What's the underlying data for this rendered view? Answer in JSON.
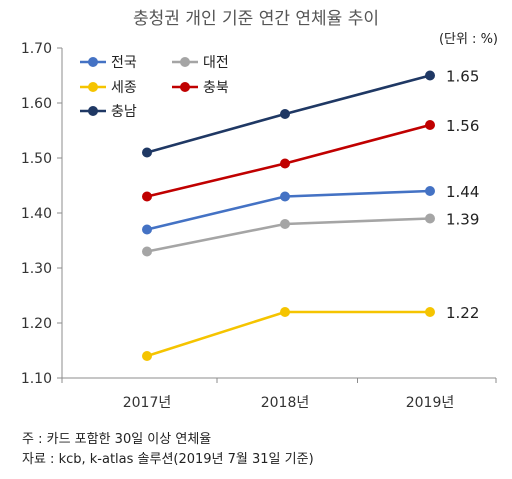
{
  "chart_data": {
    "type": "line",
    "title": "충청권 개인 기준 연간 연체율 추이",
    "unit_label": "(단위 : %)",
    "categories": [
      "2017년",
      "2018년",
      "2019년"
    ],
    "ylim": [
      1.1,
      1.7
    ],
    "yticks": [
      "1.10",
      "1.20",
      "1.30",
      "1.40",
      "1.50",
      "1.60",
      "1.70"
    ],
    "grid": false,
    "legend_position": "top-left",
    "series": [
      {
        "name": "전국",
        "color": "#4472C4",
        "values": [
          1.37,
          1.43,
          1.44
        ],
        "end_label": "1.44"
      },
      {
        "name": "대전",
        "color": "#A5A5A5",
        "values": [
          1.33,
          1.38,
          1.39
        ],
        "end_label": "1.39"
      },
      {
        "name": "세종",
        "color": "#F5C400",
        "values": [
          1.14,
          1.22,
          1.22
        ],
        "end_label": "1.22"
      },
      {
        "name": "충북",
        "color": "#C00000",
        "values": [
          1.43,
          1.49,
          1.56
        ],
        "end_label": "1.56"
      },
      {
        "name": "충남",
        "color": "#1F3864",
        "values": [
          1.51,
          1.58,
          1.65
        ],
        "end_label": "1.65"
      }
    ]
  },
  "notes": {
    "note1": "주 : 카드 포함한 30일 이상 연체율",
    "note2": "자료 : kcb, k-atlas 솔루션(2019년 7월 31일 기준)"
  }
}
